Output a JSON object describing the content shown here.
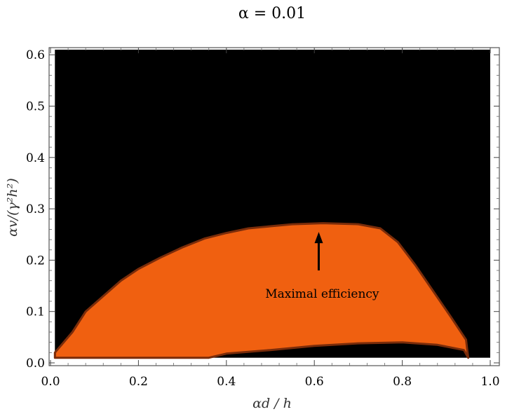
{
  "chart_data": {
    "type": "heatmap",
    "title": "α = 0.01",
    "xlabel": "αd / h",
    "ylabel": "αv/(γ²h²)",
    "xlim": [
      0.0,
      1.0
    ],
    "ylim": [
      0.0,
      0.6
    ],
    "x_ticks": [
      "0.0",
      "0.2",
      "0.4",
      "0.6",
      "0.8",
      "1.0"
    ],
    "y_ticks": [
      "0.0",
      "0.1",
      "0.2",
      "0.3",
      "0.4",
      "0.5",
      "0.6"
    ],
    "grid": false,
    "colors": {
      "background": "#000000",
      "region": "#f06010",
      "edge": "#7a2c0a",
      "frame": "#555555"
    },
    "plot_domain": {
      "x": [
        0.01,
        1.0
      ],
      "y": [
        0.01,
        0.61
      ]
    },
    "region_upper_boundary": [
      {
        "x": 0.01,
        "y": 0.02
      },
      {
        "x": 0.05,
        "y": 0.06
      },
      {
        "x": 0.08,
        "y": 0.1
      },
      {
        "x": 0.12,
        "y": 0.13
      },
      {
        "x": 0.16,
        "y": 0.16
      },
      {
        "x": 0.2,
        "y": 0.183
      },
      {
        "x": 0.25,
        "y": 0.205
      },
      {
        "x": 0.3,
        "y": 0.225
      },
      {
        "x": 0.35,
        "y": 0.242
      },
      {
        "x": 0.4,
        "y": 0.253
      },
      {
        "x": 0.45,
        "y": 0.262
      },
      {
        "x": 0.5,
        "y": 0.266
      },
      {
        "x": 0.55,
        "y": 0.27
      },
      {
        "x": 0.62,
        "y": 0.272
      },
      {
        "x": 0.7,
        "y": 0.27
      },
      {
        "x": 0.75,
        "y": 0.262
      },
      {
        "x": 0.79,
        "y": 0.235
      },
      {
        "x": 0.83,
        "y": 0.19
      },
      {
        "x": 0.87,
        "y": 0.14
      },
      {
        "x": 0.91,
        "y": 0.09
      },
      {
        "x": 0.945,
        "y": 0.045
      },
      {
        "x": 0.95,
        "y": 0.01
      }
    ],
    "region_lower_boundary": [
      {
        "x": 0.95,
        "y": 0.01
      },
      {
        "x": 0.94,
        "y": 0.025
      },
      {
        "x": 0.88,
        "y": 0.035
      },
      {
        "x": 0.8,
        "y": 0.04
      },
      {
        "x": 0.7,
        "y": 0.038
      },
      {
        "x": 0.6,
        "y": 0.033
      },
      {
        "x": 0.5,
        "y": 0.025
      },
      {
        "x": 0.4,
        "y": 0.018
      },
      {
        "x": 0.36,
        "y": 0.01
      },
      {
        "x": 0.01,
        "y": 0.01
      }
    ],
    "annotations": [
      {
        "text": "Maximal efficiency",
        "text_x": 0.6,
        "text_y": 0.135,
        "arrow_from": {
          "x": 0.61,
          "y": 0.18
        },
        "arrow_to": {
          "x": 0.61,
          "y": 0.255
        }
      }
    ]
  }
}
